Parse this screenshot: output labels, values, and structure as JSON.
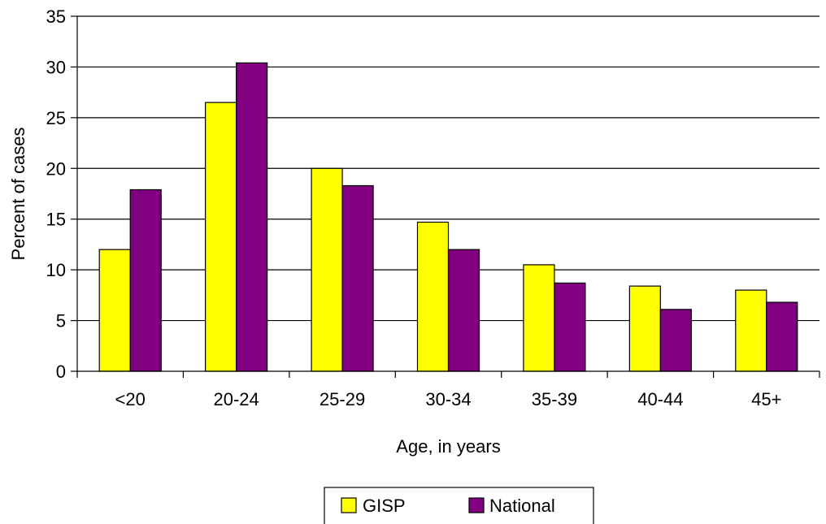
{
  "chart_data": {
    "type": "bar",
    "categories": [
      "<20",
      "20-24",
      "25-29",
      "30-34",
      "35-39",
      "40-44",
      "45+"
    ],
    "series": [
      {
        "name": "GISP",
        "color": "#ffff00",
        "values": [
          12.0,
          26.5,
          20.0,
          14.7,
          10.5,
          8.4,
          8.0
        ]
      },
      {
        "name": "National",
        "color": "#800080",
        "values": [
          17.9,
          30.4,
          18.3,
          12.0,
          8.7,
          6.1,
          6.8
        ]
      }
    ],
    "title": "",
    "xlabel": "Age, in years",
    "ylabel": "Percent of cases",
    "ylim": [
      0,
      35
    ],
    "yticks": [
      0,
      5,
      10,
      15,
      20,
      25,
      30,
      35
    ],
    "grid": true,
    "legend_position": "bottom"
  }
}
